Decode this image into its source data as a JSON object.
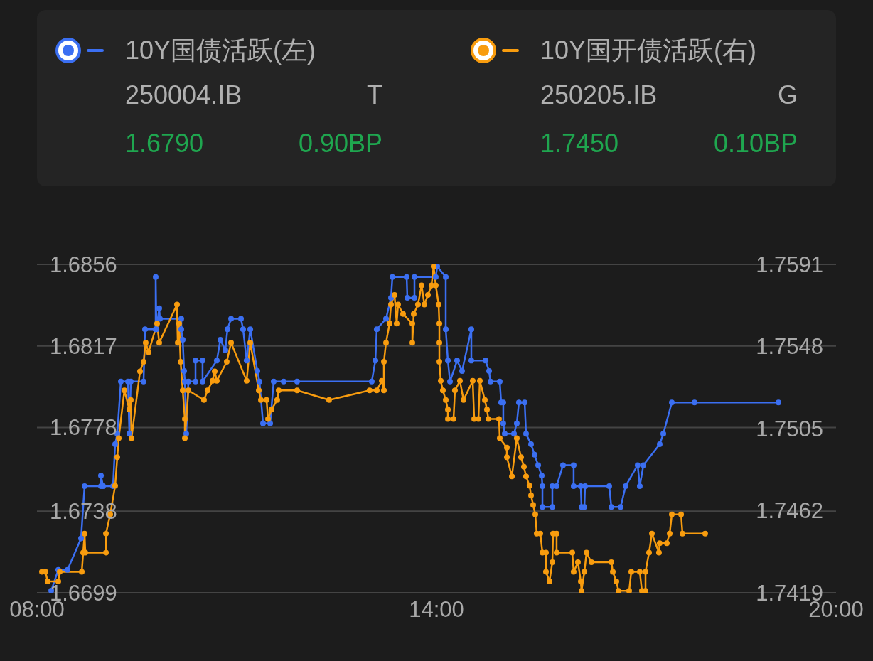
{
  "chart_data": {
    "type": "line",
    "series": [
      {
        "name": "10Y国债活跃(左)",
        "color": "#3b6ff2",
        "axis": "y",
        "x": [
          8.214,
          8.32,
          8.459,
          8.662,
          8.715,
          8.961,
          8.961,
          8.993,
          9.142,
          9.174,
          9.206,
          9.26,
          9.367,
          9.388,
          9.409,
          9.601,
          9.623,
          9.783,
          9.783,
          9.794,
          9.836,
          9.847,
          10.167,
          10.167,
          10.189,
          10.21,
          10.221,
          10.242,
          10.274,
          10.381,
          10.381,
          10.487,
          10.487,
          10.701,
          10.754,
          10.829,
          10.861,
          10.915,
          11.064,
          11.096,
          11.149,
          11.203,
          11.31,
          11.342,
          11.395,
          11.502,
          11.555,
          11.705,
          11.907,
          13.028,
          13.082,
          13.103,
          13.242,
          13.317,
          13.338,
          13.552,
          13.562,
          13.669,
          13.669,
          13.989,
          14.011,
          14.139,
          14.139,
          14.171,
          14.203,
          14.309,
          14.384,
          14.523,
          14.523,
          14.737,
          14.79,
          14.811,
          14.95,
          14.971,
          15.003,
          15.003,
          15.025,
          15.164,
          15.206,
          15.238,
          15.324,
          15.345,
          15.42,
          15.473,
          15.527,
          15.58,
          15.591,
          15.591,
          15.74,
          15.74,
          15.804,
          15.9,
          16.06,
          16.06,
          16.167,
          16.178,
          16.221,
          16.231,
          16.594,
          16.626,
          16.765,
          16.84,
          17.021,
          17.053,
          17.107,
          17.352,
          17.406,
          17.534,
          17.875,
          19.135
        ],
        "values": [
          1.67,
          1.671,
          1.671,
          1.6725,
          1.675,
          1.675,
          1.6755,
          1.675,
          1.675,
          1.677,
          1.6775,
          1.68,
          1.68,
          1.6775,
          1.68,
          1.68,
          1.6825,
          1.6825,
          1.685,
          1.6825,
          1.6835,
          1.683,
          1.683,
          1.6825,
          1.682,
          1.6805,
          1.68,
          1.6775,
          1.68,
          1.68,
          1.681,
          1.681,
          1.68,
          1.681,
          1.682,
          1.6815,
          1.6825,
          1.683,
          1.683,
          1.6825,
          1.681,
          1.6825,
          1.6805,
          1.68,
          1.678,
          1.678,
          1.68,
          1.68,
          1.68,
          1.68,
          1.681,
          1.6825,
          1.683,
          1.684,
          1.685,
          1.685,
          1.684,
          1.684,
          1.685,
          1.685,
          1.6855,
          1.685,
          1.6825,
          1.681,
          1.68,
          1.681,
          1.6805,
          1.6825,
          1.681,
          1.681,
          1.6805,
          1.68,
          1.68,
          1.679,
          1.679,
          1.678,
          1.6775,
          1.6775,
          1.678,
          1.679,
          1.679,
          1.6775,
          1.677,
          1.6765,
          1.676,
          1.6755,
          1.675,
          1.674,
          1.674,
          1.675,
          1.675,
          1.676,
          1.676,
          1.675,
          1.675,
          1.674,
          1.674,
          1.675,
          1.675,
          1.674,
          1.674,
          1.675,
          1.676,
          1.675,
          1.676,
          1.677,
          1.6775,
          1.679,
          1.679,
          1.679
        ]
      },
      {
        "name": "10Y国开债活跃(右)",
        "color": "#f89c0e",
        "axis": "y2",
        "x": [
          8.075,
          8.128,
          8.16,
          8.32,
          8.342,
          8.673,
          8.694,
          8.715,
          8.726,
          9.036,
          9.036,
          9.1,
          9.174,
          9.206,
          9.228,
          9.313,
          9.388,
          9.409,
          9.42,
          9.548,
          9.601,
          9.633,
          9.676,
          9.804,
          9.836,
          10.103,
          10.114,
          10.135,
          10.157,
          10.189,
          10.221,
          10.221,
          10.274,
          10.508,
          10.562,
          10.637,
          10.669,
          10.701,
          10.85,
          10.915,
          11.149,
          11.203,
          11.331,
          11.363,
          11.448,
          11.47,
          11.523,
          11.608,
          11.63,
          11.907,
          12.387,
          12.995,
          13.103,
          13.178,
          13.21,
          13.21,
          13.242,
          13.295,
          13.317,
          13.37,
          13.402,
          13.423,
          13.498,
          13.637,
          13.637,
          13.658,
          13.722,
          13.776,
          13.818,
          13.872,
          13.925,
          13.957,
          13.989,
          14.032,
          14.043,
          14.043,
          14.043,
          14.064,
          14.096,
          14.139,
          14.171,
          14.171,
          14.256,
          14.277,
          14.352,
          14.406,
          14.544,
          14.566,
          14.63,
          14.651,
          14.726,
          14.758,
          14.779,
          14.939,
          14.95,
          15.057,
          15.057,
          15.132,
          15.206,
          15.27,
          15.313,
          15.345,
          15.398,
          15.42,
          15.452,
          15.484,
          15.505,
          15.559,
          15.591,
          15.644,
          15.644,
          15.697,
          15.74,
          15.751,
          15.804,
          15.804,
          16.039,
          16.06,
          16.124,
          16.167,
          16.178,
          16.221,
          16.253,
          16.327,
          16.626,
          16.648,
          16.701,
          16.733,
          16.893,
          16.925,
          17.053,
          17.085,
          17.139,
          17.139,
          17.192,
          17.235,
          17.341,
          17.352,
          17.459,
          17.502,
          17.534,
          17.673,
          17.694,
          18.035
        ],
        "values": [
          1.743,
          1.743,
          1.7425,
          1.7425,
          1.743,
          1.743,
          1.744,
          1.745,
          1.744,
          1.744,
          1.745,
          1.746,
          1.7475,
          1.749,
          1.75,
          1.7525,
          1.7515,
          1.752,
          1.75,
          1.7535,
          1.754,
          1.755,
          1.7545,
          1.756,
          1.755,
          1.757,
          1.755,
          1.756,
          1.754,
          1.7525,
          1.751,
          1.75,
          1.7525,
          1.752,
          1.7525,
          1.753,
          1.7535,
          1.753,
          1.754,
          1.755,
          1.753,
          1.755,
          1.7525,
          1.752,
          1.752,
          1.751,
          1.7515,
          1.752,
          1.7525,
          1.7525,
          1.752,
          1.7525,
          1.7525,
          1.753,
          1.7525,
          1.754,
          1.755,
          1.756,
          1.757,
          1.7575,
          1.756,
          1.757,
          1.7565,
          1.756,
          1.755,
          1.7565,
          1.757,
          1.758,
          1.757,
          1.7575,
          1.758,
          1.759,
          1.758,
          1.757,
          1.756,
          1.755,
          1.754,
          1.753,
          1.7525,
          1.752,
          1.7515,
          1.751,
          1.751,
          1.7525,
          1.753,
          1.752,
          1.753,
          1.751,
          1.751,
          1.753,
          1.752,
          1.7515,
          1.751,
          1.751,
          1.75,
          1.7495,
          1.749,
          1.748,
          1.75,
          1.749,
          1.7485,
          1.748,
          1.7475,
          1.747,
          1.7465,
          1.746,
          1.745,
          1.745,
          1.744,
          1.744,
          1.743,
          1.7425,
          1.7435,
          1.745,
          1.745,
          1.744,
          1.744,
          1.743,
          1.7435,
          1.7425,
          1.742,
          1.743,
          1.744,
          1.7435,
          1.7435,
          1.743,
          1.7425,
          1.742,
          1.742,
          1.743,
          1.743,
          1.742,
          1.742,
          1.743,
          1.744,
          1.745,
          1.744,
          1.7445,
          1.7445,
          1.745,
          1.746,
          1.746,
          1.745,
          1.745
        ]
      }
    ],
    "xlim": [
      8,
      20
    ],
    "xticks": [
      {
        "value": 8,
        "label": "08:00"
      },
      {
        "value": 14,
        "label": "14:00"
      },
      {
        "value": 20,
        "label": "20:00"
      }
    ],
    "ylim": [
      1.6699,
      1.6856
    ],
    "yticks": [
      1.6699,
      1.6738,
      1.6778,
      1.6817,
      1.6856
    ],
    "y2lim": [
      1.7419,
      1.7591
    ],
    "y2ticks": [
      1.7419,
      1.7462,
      1.7505,
      1.7548,
      1.7591
    ],
    "grid": "y",
    "legend": "top",
    "marker": "circle",
    "line_style": "solid",
    "annotations": [
      "250004.IB",
      "T",
      "1.6790",
      "0.90BP",
      "250205.IB",
      "G",
      "1.7450",
      "0.10BP"
    ]
  }
}
